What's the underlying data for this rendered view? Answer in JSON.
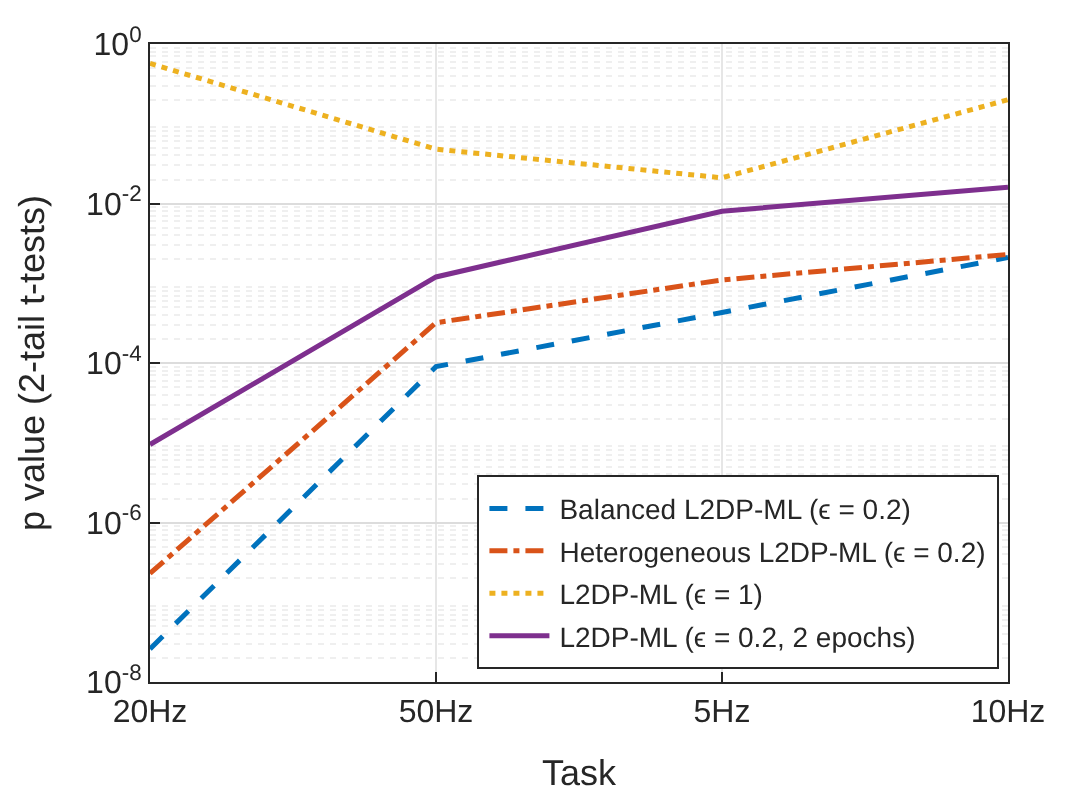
{
  "chart_data": {
    "type": "line",
    "xlabel": "Task",
    "ylabel": "p value (2-tail t-tests)",
    "categories": [
      "20Hz",
      "50Hz",
      "5Hz",
      "10Hz"
    ],
    "log": "y",
    "ylim": [
      1e-08,
      1
    ],
    "yticks": [
      {
        "value": 1e-08,
        "label": "10$^{-8}$"
      },
      {
        "value": 1e-06,
        "label": "10$^{-6}$"
      },
      {
        "value": 0.0001,
        "label": "10$^{-4}$"
      },
      {
        "value": 0.01,
        "label": "10$^{-2}$"
      },
      {
        "value": 1,
        "label": "10$^{0}$"
      }
    ],
    "grid": true,
    "legend": "bottom right",
    "series": [
      {
        "name": "Balanced L2DP-ML (ϵ = 0.2)",
        "color": "#0072bd",
        "line_style": "dashed",
        "values": [
          2.6e-08,
          9e-05,
          0.00043,
          0.0021
        ]
      },
      {
        "name": "Heterogeneous L2DP-ML (ϵ = 0.2)",
        "color": "#d95319",
        "line_style": "dashdot",
        "values": [
          2.3e-07,
          0.00032,
          0.0011,
          0.0023
        ]
      },
      {
        "name": "L2DP-ML (ϵ = 1)",
        "color": "#edb120",
        "line_style": "dotted",
        "values": [
          0.57,
          0.048,
          0.021,
          0.2
        ]
      },
      {
        "name": "L2DP-ML (ϵ = 0.2, 2 epochs)",
        "color": "#7e2f8e",
        "line_style": "solid",
        "values": [
          9.5e-06,
          0.0012,
          0.008,
          0.016
        ]
      }
    ]
  }
}
